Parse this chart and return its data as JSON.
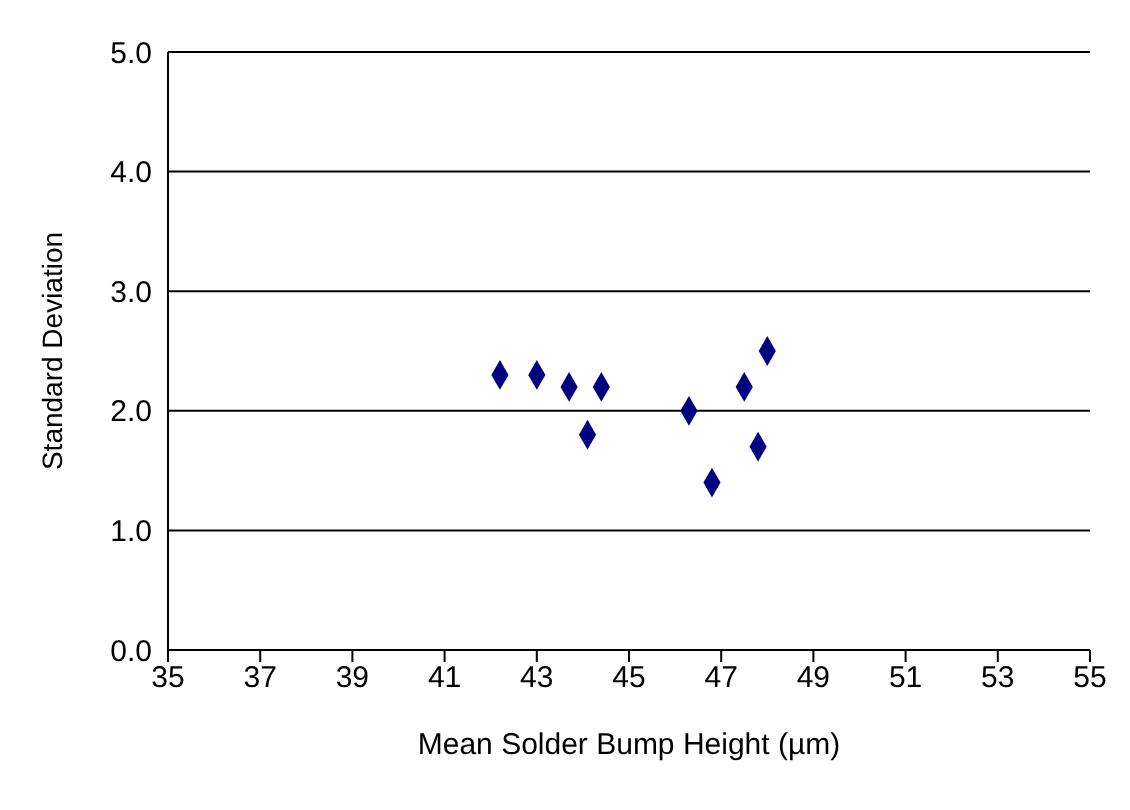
{
  "chart_data": {
    "type": "scatter",
    "xlabel": "Mean Solder Bump Height (µm)",
    "ylabel": "Standard Deviation",
    "x": [
      42.2,
      43.0,
      43.7,
      44.1,
      44.4,
      46.3,
      46.8,
      47.5,
      47.8,
      48.0
    ],
    "series": [
      {
        "color": "#000080",
        "values": [
          2.3,
          2.3,
          2.2,
          1.8,
          2.2,
          2.0,
          1.4,
          2.2,
          1.7,
          2.5
        ]
      }
    ],
    "xlim": [
      35,
      55
    ],
    "xticks": [
      35,
      37,
      39,
      41,
      43,
      45,
      47,
      49,
      51,
      53,
      55
    ],
    "ylim": [
      0,
      5
    ],
    "yticks": [
      {
        "value": 0,
        "label": "0.0"
      },
      {
        "value": 1,
        "label": "1.0"
      },
      {
        "value": 2,
        "label": "2.0"
      },
      {
        "value": 3,
        "label": "3.0"
      },
      {
        "value": 4,
        "label": "4.0"
      },
      {
        "value": 5,
        "label": "5.0"
      }
    ],
    "grid": "y",
    "marker": "diamond",
    "legend": false
  }
}
